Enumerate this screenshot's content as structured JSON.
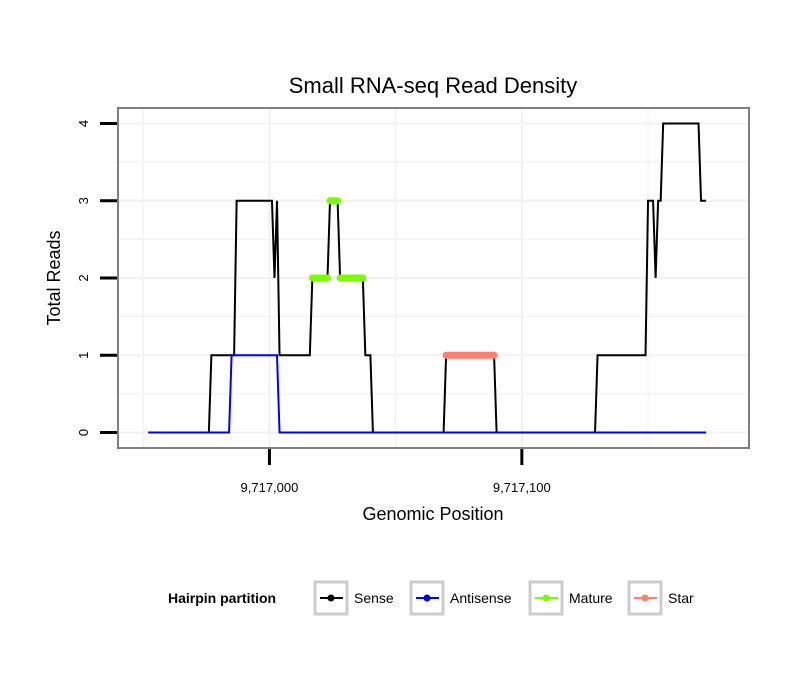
{
  "chart_data": {
    "type": "line",
    "title": "Small RNA-seq Read Density",
    "xlabel": "Genomic Position",
    "ylabel": "Total Reads",
    "xlim": [
      9716940,
      9717190
    ],
    "ylim": [
      -0.2,
      4.2
    ],
    "xticks": [
      {
        "value": 9717000,
        "label": "9,717,000"
      },
      {
        "value": 9717100,
        "label": "9,717,100"
      }
    ],
    "yticks": [
      {
        "value": 0,
        "label": "0"
      },
      {
        "value": 1,
        "label": "1"
      },
      {
        "value": 2,
        "label": "2"
      },
      {
        "value": 3,
        "label": "3"
      },
      {
        "value": 4,
        "label": "4"
      }
    ],
    "grid": true,
    "legend": {
      "title": "Hairpin partition",
      "position": "bottom",
      "entries": [
        {
          "name": "Sense",
          "color": "#000000"
        },
        {
          "name": "Antisense",
          "color": "#0000ff"
        },
        {
          "name": "Mature",
          "color": "#7cfc00"
        },
        {
          "name": "Star",
          "color": "#fa8072"
        }
      ]
    },
    "series": [
      {
        "name": "Sense",
        "color": "#000000",
        "style": "line",
        "points": [
          [
            9716952,
            0
          ],
          [
            9716976,
            0
          ],
          [
            9716977,
            1
          ],
          [
            9716986,
            1
          ],
          [
            9716987,
            3
          ],
          [
            9717001,
            3
          ],
          [
            9717002,
            2
          ],
          [
            9717003,
            3
          ],
          [
            9717004,
            1
          ],
          [
            9717016,
            1
          ],
          [
            9717017,
            2
          ],
          [
            9717023,
            2
          ],
          [
            9717024,
            3
          ],
          [
            9717027,
            3
          ],
          [
            9717028,
            2
          ],
          [
            9717037,
            2
          ],
          [
            9717038,
            1
          ],
          [
            9717040,
            1
          ],
          [
            9717041,
            0
          ],
          [
            9717069,
            0
          ],
          [
            9717070,
            1
          ],
          [
            9717089,
            1
          ],
          [
            9717090,
            0
          ],
          [
            9717129,
            0
          ],
          [
            9717130,
            1
          ],
          [
            9717149,
            1
          ],
          [
            9717150,
            3
          ],
          [
            9717152,
            3
          ],
          [
            9717153,
            2
          ],
          [
            9717154,
            3
          ],
          [
            9717155,
            3
          ],
          [
            9717156,
            4
          ],
          [
            9717170,
            4
          ],
          [
            9717171,
            3
          ],
          [
            9717173,
            3
          ]
        ]
      },
      {
        "name": "Antisense",
        "color": "#0000ff",
        "style": "line",
        "points": [
          [
            9716952,
            0
          ],
          [
            9716984,
            0
          ],
          [
            9716985,
            1
          ],
          [
            9717003,
            1
          ],
          [
            9717004,
            0
          ],
          [
            9717173,
            0
          ]
        ]
      },
      {
        "name": "Mature",
        "color": "#7cfc00",
        "style": "thick",
        "segments": [
          [
            [
              9717017,
              2
            ],
            [
              9717023,
              2
            ]
          ],
          [
            [
              9717024,
              3
            ],
            [
              9717027,
              3
            ]
          ],
          [
            [
              9717028,
              2
            ],
            [
              9717037,
              2
            ]
          ]
        ]
      },
      {
        "name": "Star",
        "color": "#fa8072",
        "style": "thick",
        "segments": [
          [
            [
              9717070,
              1
            ],
            [
              9717089,
              1
            ]
          ]
        ]
      }
    ]
  }
}
